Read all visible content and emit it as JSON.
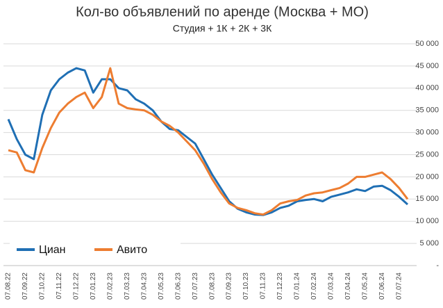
{
  "chart_data": {
    "type": "line",
    "title": "Кол-во объявлений по аренде (Москва + МО)",
    "subtitle": "Студия + 1К + 2К + 3К",
    "categories": [
      "07.08.22",
      null,
      "07.09.22",
      null,
      "07.10.22",
      null,
      "07.11.22",
      null,
      "07.12.22",
      null,
      "07.01.23",
      null,
      "07.02.23",
      null,
      "07.03.23",
      null,
      "07.04.23",
      null,
      "07.05.23",
      null,
      "07.06.23",
      null,
      "07.07.23",
      null,
      "07.08.23",
      null,
      "07.09.23",
      null,
      "07.10.23",
      null,
      "07.11.23",
      null,
      "07.12.23",
      null,
      "07.01.24",
      null,
      "07.02.24",
      null,
      "07.03.24",
      null,
      "07.04.24",
      null,
      "07.05.24",
      null,
      "07.06.24",
      null,
      "07.07.24",
      null
    ],
    "series": [
      {
        "name": "Циан",
        "color": "#1f6fb4",
        "values": [
          33000,
          28500,
          25000,
          24000,
          34000,
          39500,
          42000,
          43500,
          44500,
          44000,
          39000,
          42000,
          42000,
          40000,
          39500,
          37500,
          36500,
          35000,
          32500,
          30800,
          30500,
          29000,
          27500,
          24000,
          20500,
          17500,
          14500,
          12800,
          12000,
          11500,
          11400,
          12000,
          13000,
          13500,
          14500,
          14800,
          15000,
          14500,
          15500,
          16000,
          16500,
          17200,
          16800,
          17800,
          18000,
          17000,
          15500,
          13800
        ]
      },
      {
        "name": "Авито",
        "color": "#ed7d31",
        "values": [
          26000,
          25500,
          21500,
          21000,
          26500,
          31000,
          34500,
          36500,
          38000,
          39000,
          35500,
          38000,
          44500,
          36500,
          35500,
          35200,
          35000,
          34000,
          32500,
          31500,
          30000,
          28000,
          26000,
          23000,
          19500,
          16500,
          14000,
          13000,
          12500,
          11800,
          11500,
          12500,
          14000,
          14500,
          14800,
          15800,
          16300,
          16500,
          17000,
          17500,
          18500,
          20000,
          20000,
          20500,
          21000,
          19500,
          17500,
          15000
        ]
      }
    ],
    "ylim": [
      0,
      50000
    ],
    "yticks": [
      {
        "value": 0,
        "label": "-"
      },
      {
        "value": 5000,
        "label": "5 000"
      },
      {
        "value": 10000,
        "label": "10 000"
      },
      {
        "value": 15000,
        "label": "15 000"
      },
      {
        "value": 20000,
        "label": "20 000"
      },
      {
        "value": 25000,
        "label": "25 000"
      },
      {
        "value": 30000,
        "label": "30 000"
      },
      {
        "value": 35000,
        "label": "35 000"
      },
      {
        "value": 40000,
        "label": "40 000"
      },
      {
        "value": 45000,
        "label": "45 000"
      },
      {
        "value": 50000,
        "label": "50 000"
      }
    ],
    "grid": true
  }
}
